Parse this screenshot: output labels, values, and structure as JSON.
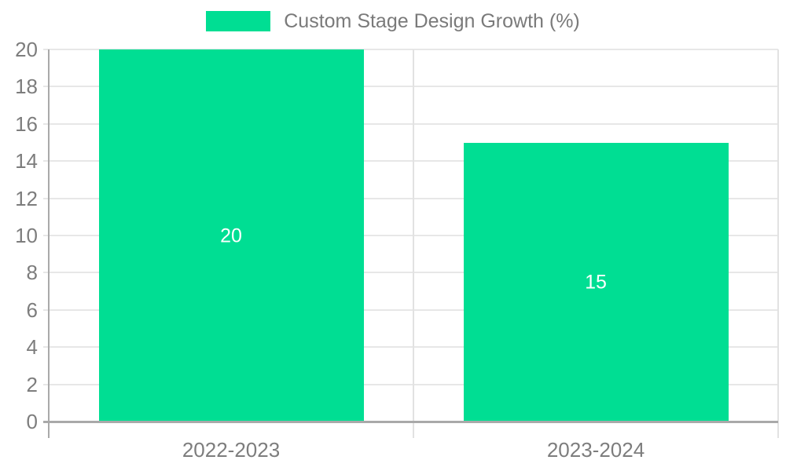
{
  "legend": {
    "label": "Custom Stage Design Growth (%)"
  },
  "colors": {
    "bar": "#00de93",
    "grid": "#e7e7e7",
    "boundary_grid": "#e2e2e2",
    "axis": "#a9a9a9",
    "tick_label": "#7d7d7d",
    "data_label": "#ffffff",
    "background": "#ffffff"
  },
  "chart_data": {
    "type": "bar",
    "title": "",
    "legend": {
      "entries": [
        "Custom Stage Design Growth (%)"
      ],
      "position": "top-center",
      "swatch_color": "#00de93"
    },
    "categories": [
      "2022-2023",
      "2023-2024"
    ],
    "series": [
      {
        "name": "Custom Stage Design Growth (%)",
        "values": [
          20,
          15
        ],
        "color": "#00de93"
      }
    ],
    "data_labels": [
      "20",
      "15"
    ],
    "xlabel": "",
    "ylabel": "",
    "ylim": [
      0,
      20
    ],
    "yticks": [
      0,
      2,
      4,
      6,
      8,
      10,
      12,
      14,
      16,
      18,
      20
    ],
    "grid": true,
    "category_boundary_gridlines": true
  }
}
